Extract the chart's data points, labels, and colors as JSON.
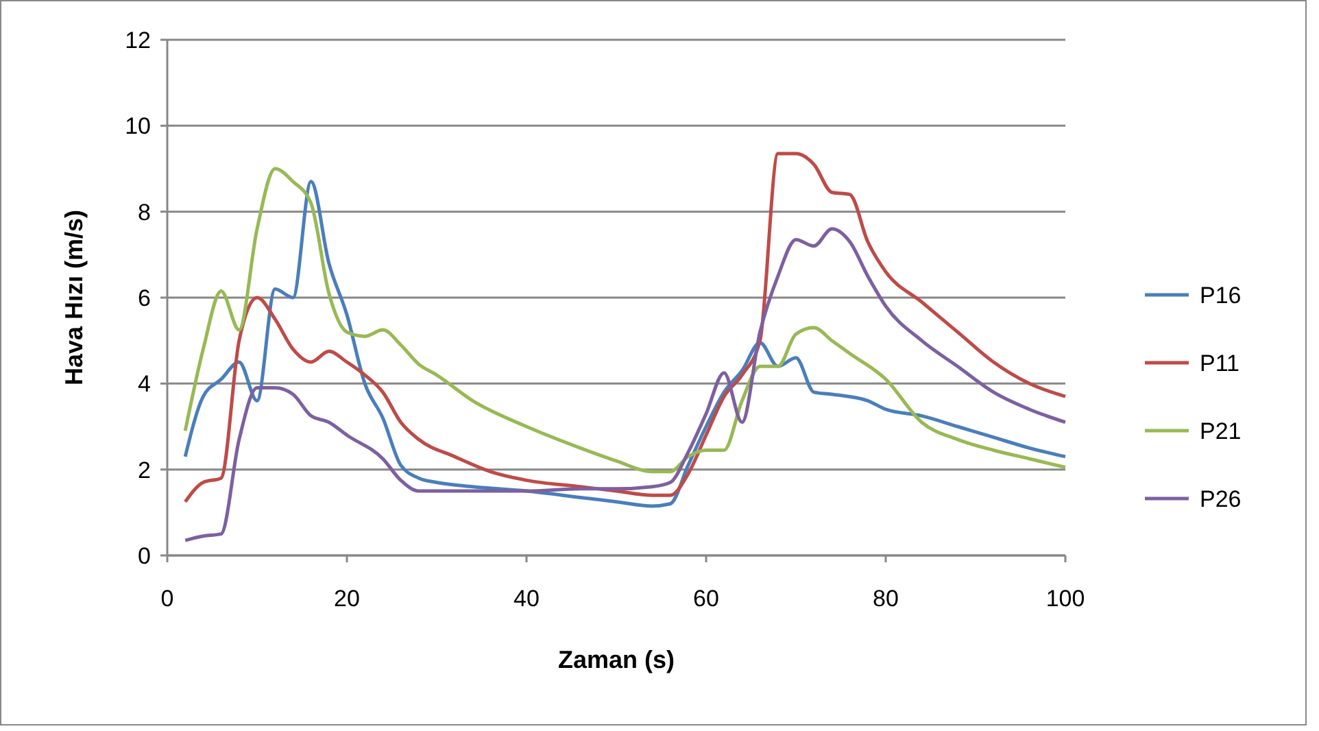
{
  "chart_data": {
    "type": "line",
    "xlabel": "Zaman (s)",
    "ylabel": "Hava Hızı (m/s)",
    "xlim": [
      0,
      100
    ],
    "xticks": [
      0,
      20,
      40,
      60,
      80,
      100
    ],
    "ylim": [
      0,
      12
    ],
    "yticks": [
      0,
      2,
      4,
      6,
      8,
      10,
      12
    ],
    "grid": "y",
    "legend": "right",
    "line_style": "solid",
    "series": [
      {
        "name": "P16",
        "color": "#4a7ebb",
        "x": [
          2,
          4,
          6,
          8,
          10,
          12,
          14,
          16,
          18,
          20,
          22,
          24,
          26,
          28,
          30,
          34,
          40,
          46,
          50,
          54,
          56,
          58,
          60,
          62,
          64,
          66,
          68,
          70,
          72,
          74,
          78,
          80,
          84,
          88,
          92,
          96,
          100
        ],
        "values": [
          2.3,
          3.7,
          4.1,
          4.5,
          3.6,
          6.2,
          6.0,
          8.7,
          6.8,
          5.6,
          4.0,
          3.2,
          2.1,
          1.8,
          1.7,
          1.6,
          1.5,
          1.35,
          1.25,
          1.15,
          1.2,
          2.1,
          3.0,
          3.8,
          4.3,
          4.95,
          4.4,
          4.6,
          3.8,
          3.75,
          3.6,
          3.4,
          3.25,
          3.0,
          2.75,
          2.5,
          2.3
        ]
      },
      {
        "name": "P11",
        "color": "#be4b48",
        "x": [
          2,
          4,
          6,
          8,
          10,
          12,
          14,
          16,
          18,
          20,
          22,
          24,
          26,
          28,
          32,
          36,
          40,
          46,
          50,
          54,
          56,
          58,
          60,
          62,
          64,
          66,
          68,
          70,
          72,
          74,
          76,
          78,
          80,
          84,
          88,
          92,
          96,
          100
        ],
        "values": [
          1.25,
          1.7,
          1.8,
          5.0,
          6.0,
          5.5,
          4.8,
          4.5,
          4.75,
          4.5,
          4.2,
          3.8,
          3.1,
          2.7,
          2.3,
          1.95,
          1.75,
          1.6,
          1.5,
          1.4,
          1.4,
          1.9,
          2.8,
          3.7,
          4.2,
          5.0,
          9.35,
          9.35,
          9.1,
          8.45,
          8.4,
          7.3,
          6.6,
          5.9,
          5.2,
          4.5,
          4.0,
          3.7
        ]
      },
      {
        "name": "P21",
        "color": "#98b954",
        "x": [
          2,
          4,
          6,
          8,
          10,
          12,
          14,
          16,
          18,
          20,
          22,
          24,
          26,
          28,
          30,
          34,
          40,
          46,
          50,
          54,
          56,
          58,
          60,
          62,
          64,
          66,
          68,
          70,
          72,
          74,
          76,
          80,
          84,
          88,
          92,
          96,
          100
        ],
        "values": [
          2.9,
          4.8,
          6.15,
          5.25,
          7.6,
          9.0,
          8.7,
          8.2,
          6.1,
          5.2,
          5.1,
          5.25,
          4.9,
          4.45,
          4.2,
          3.6,
          3.0,
          2.5,
          2.2,
          1.95,
          1.95,
          2.3,
          2.45,
          2.45,
          3.6,
          4.4,
          4.4,
          5.15,
          5.3,
          5.0,
          4.7,
          4.1,
          3.1,
          2.7,
          2.45,
          2.25,
          2.05
        ]
      },
      {
        "name": "P26",
        "color": "#7d60a0",
        "x": [
          2,
          4,
          6,
          8,
          10,
          12,
          14,
          16,
          18,
          20,
          24,
          26,
          28,
          32,
          40,
          46,
          50,
          54,
          56,
          58,
          60,
          62,
          64,
          66,
          68,
          70,
          72,
          74,
          76,
          78,
          80,
          84,
          88,
          92,
          96,
          100
        ],
        "values": [
          0.35,
          0.45,
          0.5,
          2.7,
          3.9,
          3.9,
          3.75,
          3.25,
          3.1,
          2.8,
          2.25,
          1.75,
          1.5,
          1.5,
          1.5,
          1.55,
          1.55,
          1.6,
          1.7,
          2.4,
          3.3,
          4.25,
          3.1,
          5.2,
          6.5,
          7.35,
          7.2,
          7.6,
          7.3,
          6.5,
          5.8,
          5.0,
          4.4,
          3.8,
          3.4,
          3.1
        ]
      }
    ]
  }
}
